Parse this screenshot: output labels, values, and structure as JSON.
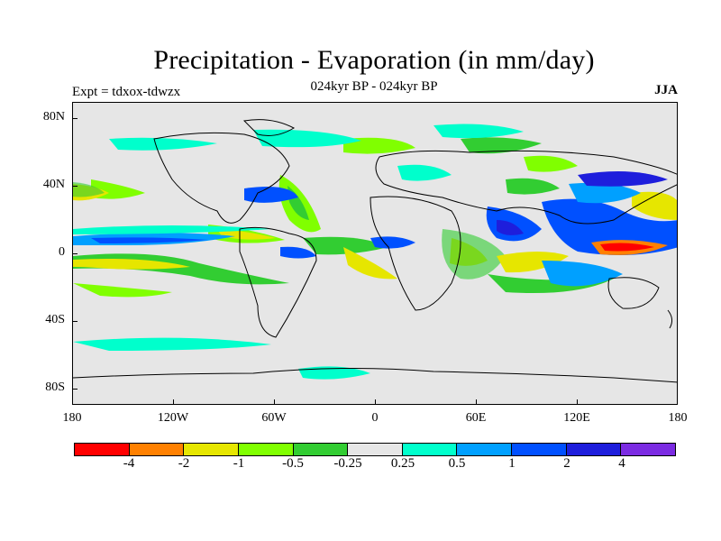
{
  "title": "Precipitation - Evaporation (in mm/day)",
  "subtitle": "024kyr BP - 024kyr BP",
  "experiment": "Expt = tdxox-tdwzx",
  "season": "JJA",
  "axes": {
    "y_ticks": [
      "80N",
      "40N",
      "0",
      "40S",
      "80S"
    ],
    "x_ticks": [
      "180",
      "120W",
      "60W",
      "0",
      "60E",
      "120E",
      "180"
    ]
  },
  "colorbar": {
    "colors": [
      "#ff0000",
      "#ff8000",
      "#e6e600",
      "#80ff00",
      "#32cd32",
      "#e6e6e6",
      "#00ffcc",
      "#00a0ff",
      "#0050ff",
      "#1e1edc",
      "#7b2be2"
    ],
    "labels": [
      "-4",
      "-2",
      "-1",
      "-0.5",
      "-0.25",
      "0.25",
      "0.5",
      "1",
      "2",
      "4"
    ]
  },
  "colors": {
    "background": "#e6e6e6",
    "coastline": "#000000"
  }
}
